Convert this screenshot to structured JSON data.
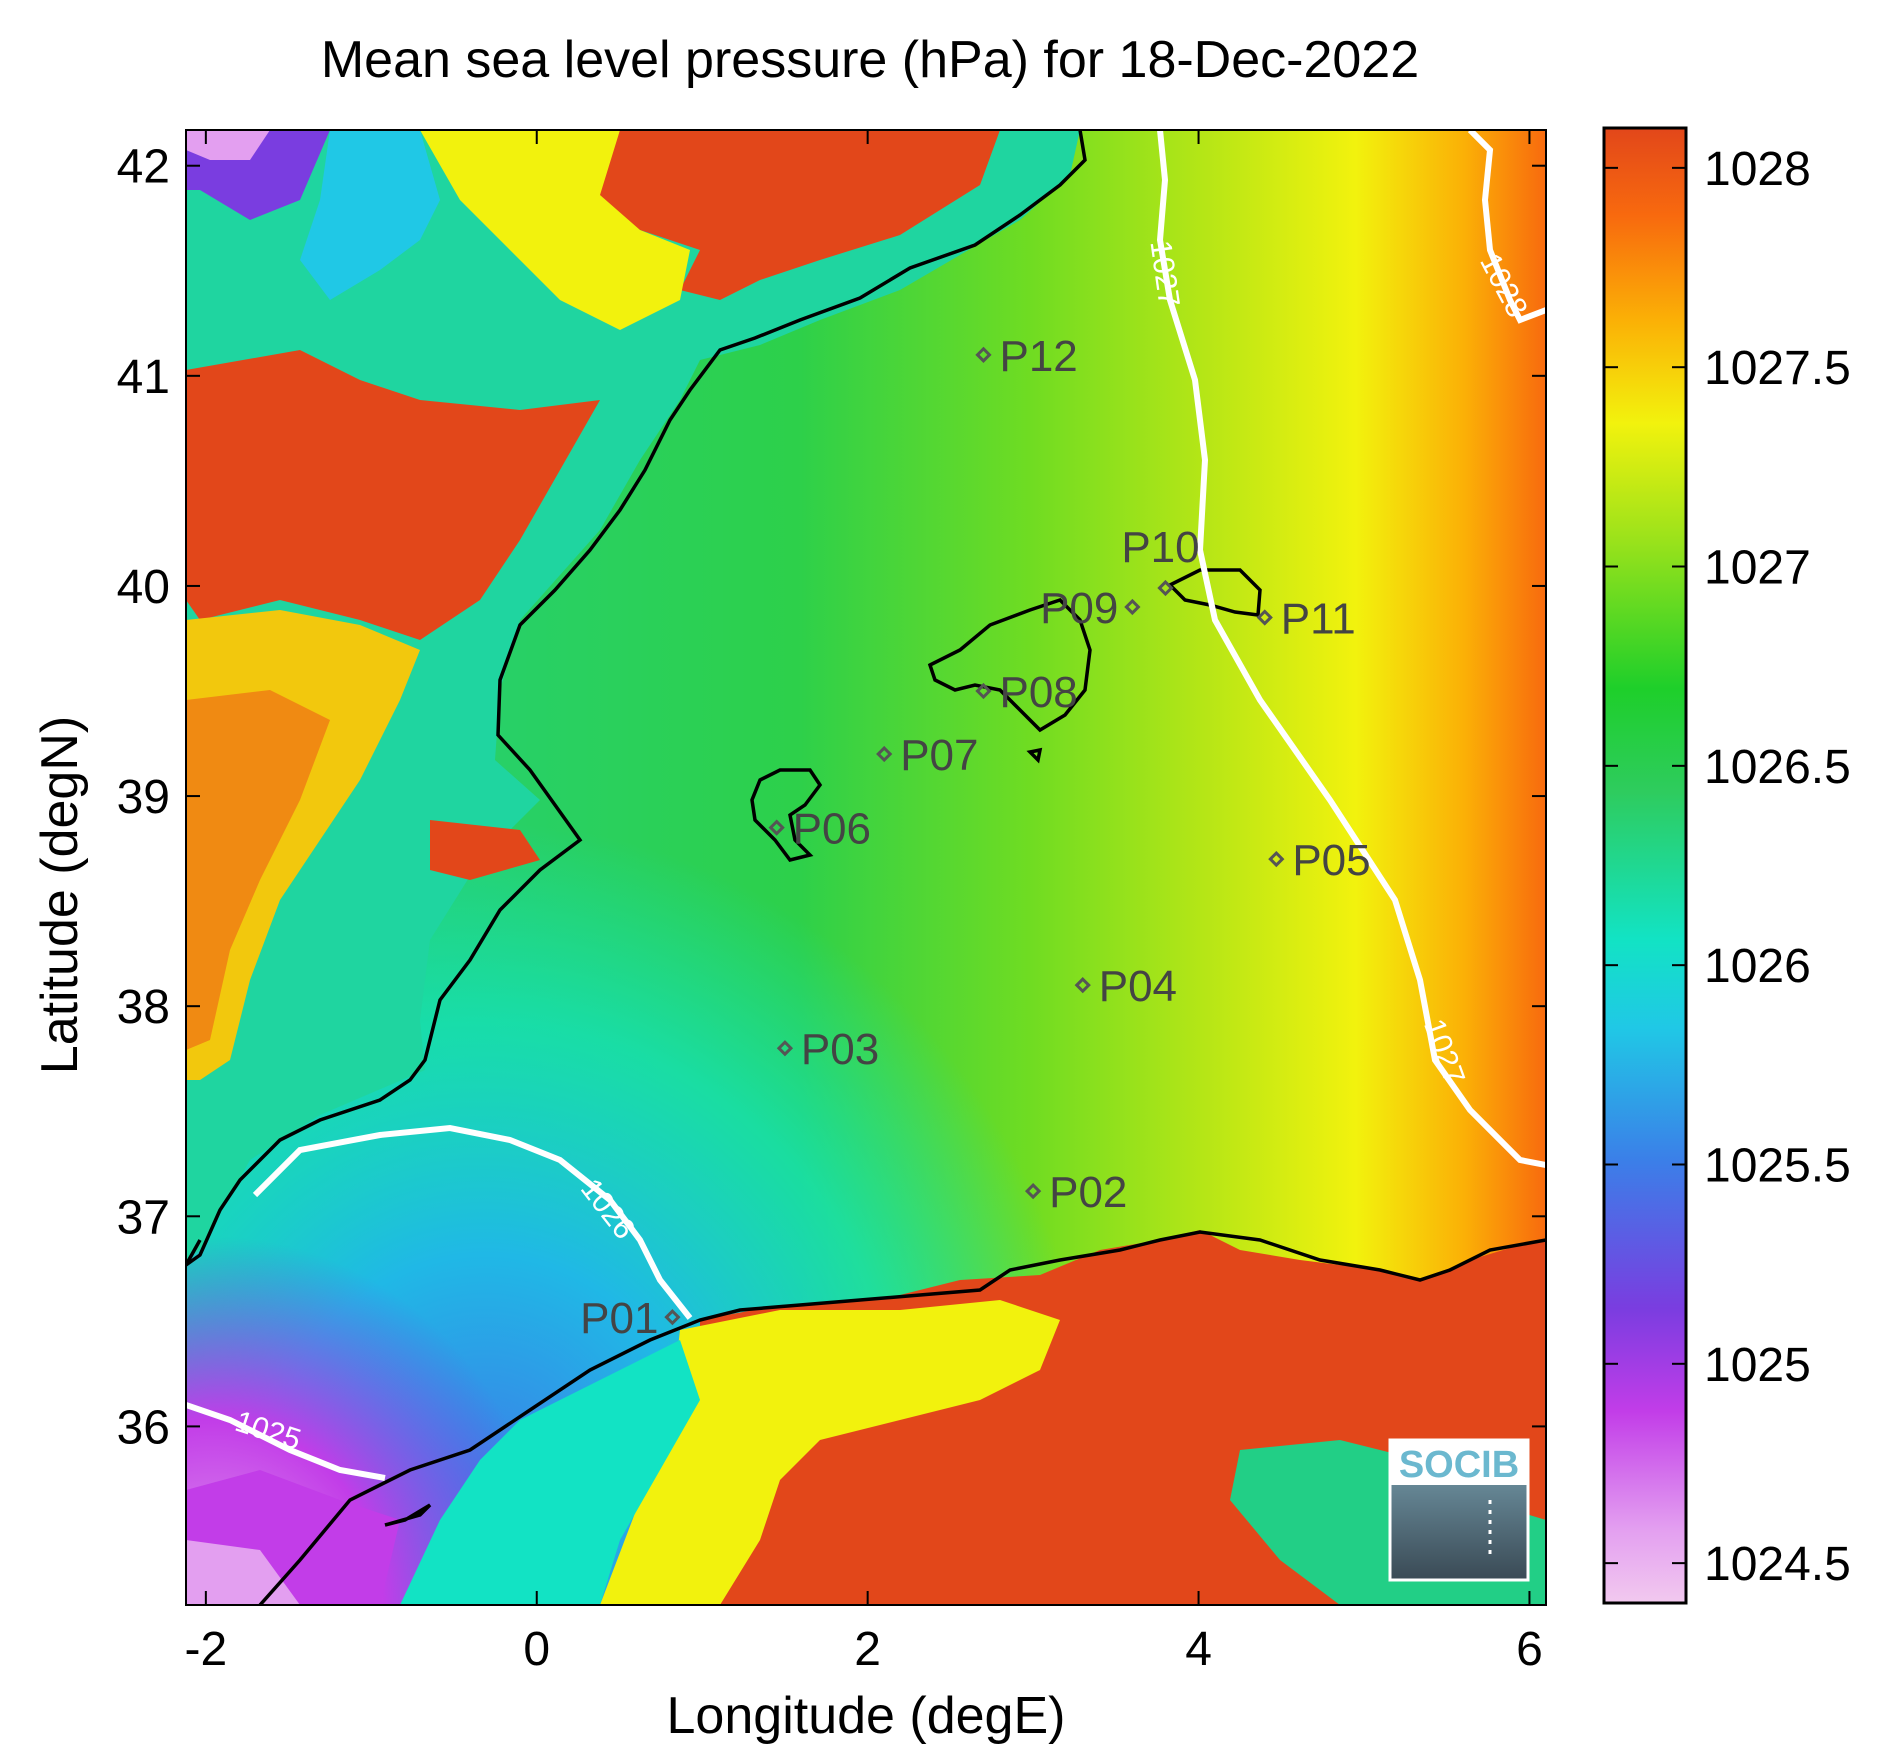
{
  "title": "Mean sea level pressure (hPa) for 18-Dec-2022",
  "xlabel": "Longitude (degE)",
  "ylabel": "Latitude (degN)",
  "x_ticks": [
    "-2",
    "0",
    "2",
    "4",
    "6"
  ],
  "y_ticks": [
    "36",
    "37",
    "38",
    "39",
    "40",
    "41",
    "42"
  ],
  "colorbar": {
    "ticks": [
      "1024.5",
      "1025",
      "1025.5",
      "1026",
      "1026.5",
      "1027",
      "1027.5",
      "1028"
    ],
    "range": [
      1024.4,
      1028.1
    ],
    "colors": [
      "#f2c9ef",
      "#c23de8",
      "#7a3de0",
      "#3b7fe8",
      "#20c8e6",
      "#12e3c4",
      "#2ecc5e",
      "#1ecf2a",
      "#9ae21b",
      "#f2f20d",
      "#fbb006",
      "#f86a0e",
      "#e2471a"
    ]
  },
  "contour_labels": [
    "1025",
    "1026",
    "1027",
    "1027",
    "1028"
  ],
  "stations": [
    {
      "name": "P01",
      "lon": 0.82,
      "lat": 36.52
    },
    {
      "name": "P02",
      "lon": 3.0,
      "lat": 37.12
    },
    {
      "name": "P03",
      "lon": 1.5,
      "lat": 37.8
    },
    {
      "name": "P04",
      "lon": 3.3,
      "lat": 38.1
    },
    {
      "name": "P05",
      "lon": 4.47,
      "lat": 38.7
    },
    {
      "name": "P06",
      "lon": 1.45,
      "lat": 38.85
    },
    {
      "name": "P07",
      "lon": 2.1,
      "lat": 39.2
    },
    {
      "name": "P08",
      "lon": 2.7,
      "lat": 39.5
    },
    {
      "name": "P09",
      "lon": 3.6,
      "lat": 39.9
    },
    {
      "name": "P10",
      "lon": 3.8,
      "lat": 39.99
    },
    {
      "name": "P11",
      "lon": 4.4,
      "lat": 39.85
    },
    {
      "name": "P12",
      "lon": 2.7,
      "lat": 41.1
    }
  ],
  "logo": "SOCIB"
}
